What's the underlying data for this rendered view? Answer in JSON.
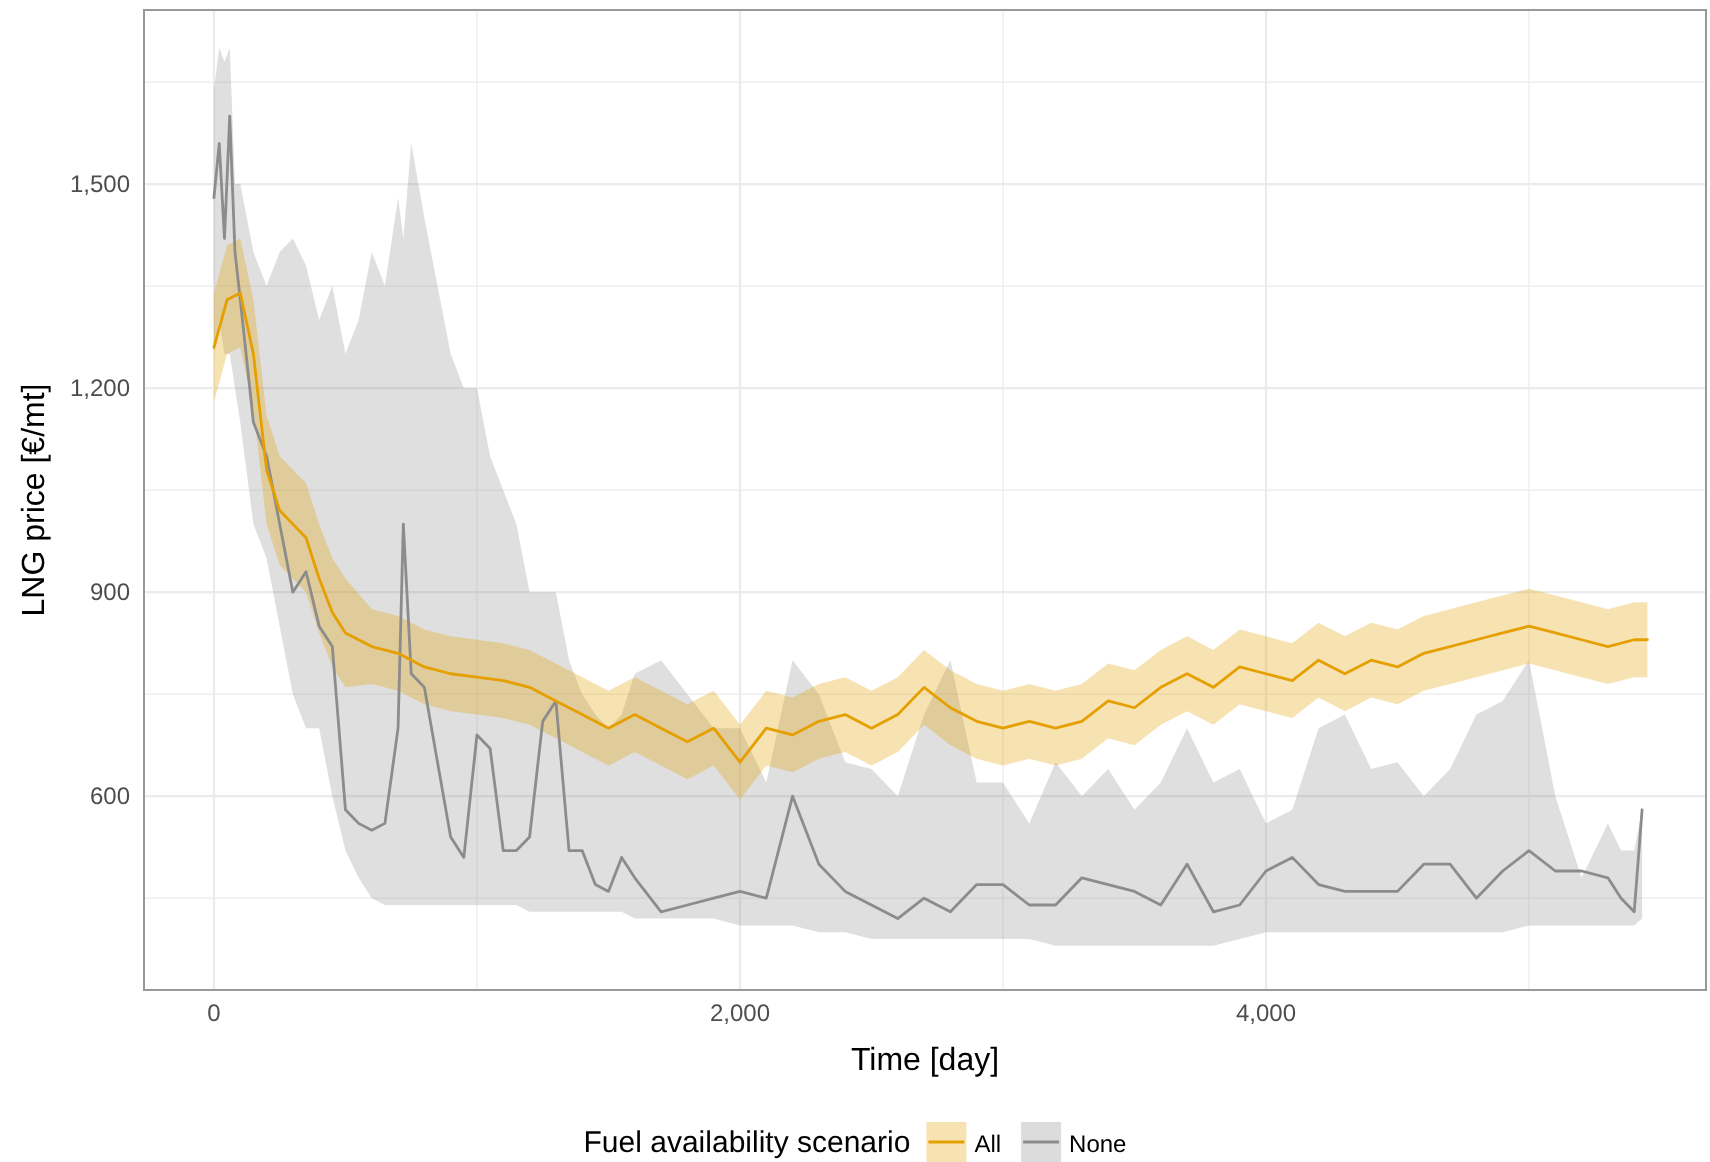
{
  "chart_data": {
    "type": "line",
    "xlabel": "Time [day]",
    "ylabel": "LNG price [€/mt]",
    "legend_title": "Fuel availability scenario",
    "legend": "bottom",
    "grid": true,
    "xlim": [
      -266,
      5673
    ],
    "ylim": [
      315,
      1756
    ],
    "xticks": [
      0,
      {
        "value": 1000,
        "label": null
      },
      {
        "value": 2000,
        "label": "2,000"
      },
      {
        "value": 3000,
        "label": null
      },
      {
        "value": 4000,
        "label": "4,000"
      },
      {
        "value": 5000,
        "label": null
      }
    ],
    "yticks": [
      {
        "value": 450,
        "label": null
      },
      {
        "value": 600,
        "label": "600"
      },
      {
        "value": 750,
        "label": null
      },
      {
        "value": 900,
        "label": "900"
      },
      {
        "value": 1050,
        "label": null
      },
      {
        "value": 1200,
        "label": "1,200"
      },
      {
        "value": 1350,
        "label": null
      },
      {
        "value": 1500,
        "label": "1,500"
      },
      {
        "value": 1650,
        "label": null
      }
    ],
    "series": [
      {
        "name": "All",
        "color": "#e69f00",
        "x": [
          0,
          50,
          100,
          150,
          200,
          250,
          300,
          350,
          400,
          450,
          500,
          600,
          700,
          800,
          900,
          1000,
          1100,
          1200,
          1300,
          1400,
          1500,
          1600,
          1700,
          1800,
          1900,
          2000,
          2100,
          2200,
          2300,
          2400,
          2500,
          2600,
          2700,
          2800,
          2900,
          3000,
          3100,
          3200,
          3300,
          3400,
          3500,
          3600,
          3700,
          3800,
          3900,
          4000,
          4100,
          4200,
          4300,
          4400,
          4500,
          4600,
          4700,
          4800,
          4900,
          5000,
          5100,
          5200,
          5300,
          5400,
          5450
        ],
        "values": [
          1260,
          1330,
          1340,
          1250,
          1080,
          1020,
          1000,
          980,
          920,
          870,
          840,
          820,
          810,
          790,
          780,
          775,
          770,
          760,
          740,
          720,
          700,
          720,
          700,
          680,
          700,
          650,
          700,
          690,
          710,
          720,
          700,
          720,
          760,
          730,
          710,
          700,
          710,
          700,
          710,
          740,
          730,
          760,
          780,
          760,
          790,
          780,
          770,
          800,
          780,
          800,
          790,
          810,
          820,
          830,
          840,
          850,
          840,
          830,
          820,
          830,
          830
        ],
        "lower": [
          1180,
          1250,
          1260,
          1170,
          1000,
          940,
          920,
          900,
          840,
          790,
          760,
          765,
          755,
          735,
          725,
          720,
          715,
          705,
          685,
          665,
          645,
          665,
          645,
          625,
          645,
          595,
          645,
          635,
          655,
          665,
          645,
          665,
          705,
          675,
          655,
          645,
          655,
          645,
          655,
          685,
          675,
          705,
          725,
          705,
          735,
          725,
          715,
          745,
          725,
          745,
          735,
          755,
          765,
          775,
          785,
          795,
          785,
          775,
          765,
          775,
          775
        ],
        "upper": [
          1340,
          1410,
          1420,
          1330,
          1160,
          1100,
          1080,
          1060,
          1000,
          950,
          920,
          875,
          865,
          845,
          835,
          830,
          825,
          815,
          795,
          775,
          755,
          775,
          755,
          735,
          755,
          705,
          755,
          745,
          765,
          775,
          755,
          775,
          815,
          785,
          765,
          755,
          765,
          755,
          765,
          795,
          785,
          815,
          835,
          815,
          845,
          835,
          825,
          855,
          835,
          855,
          845,
          865,
          875,
          885,
          895,
          905,
          895,
          885,
          875,
          885,
          885
        ]
      },
      {
        "name": "None",
        "color": "#8c8c8c",
        "x": [
          0,
          20,
          40,
          60,
          80,
          100,
          150,
          200,
          250,
          300,
          350,
          400,
          450,
          500,
          550,
          600,
          650,
          700,
          720,
          750,
          800,
          850,
          900,
          950,
          1000,
          1050,
          1100,
          1150,
          1200,
          1250,
          1300,
          1350,
          1400,
          1450,
          1500,
          1550,
          1600,
          1700,
          1800,
          1900,
          2000,
          2100,
          2200,
          2300,
          2400,
          2500,
          2600,
          2700,
          2800,
          2900,
          3000,
          3100,
          3200,
          3300,
          3400,
          3500,
          3600,
          3700,
          3800,
          3900,
          4000,
          4100,
          4200,
          4300,
          4400,
          4500,
          4600,
          4700,
          4800,
          4900,
          5000,
          5100,
          5200,
          5300,
          5350,
          5400,
          5430
        ],
        "values": [
          1480,
          1560,
          1420,
          1600,
          1400,
          1330,
          1150,
          1100,
          1000,
          900,
          930,
          850,
          820,
          580,
          560,
          550,
          560,
          700,
          1000,
          780,
          760,
          650,
          540,
          510,
          690,
          670,
          520,
          520,
          540,
          710,
          740,
          520,
          520,
          470,
          460,
          510,
          480,
          430,
          440,
          450,
          460,
          450,
          600,
          500,
          460,
          440,
          420,
          450,
          430,
          470,
          470,
          440,
          440,
          480,
          470,
          460,
          440,
          500,
          430,
          440,
          490,
          510,
          470,
          460,
          460,
          460,
          500,
          500,
          450,
          490,
          520,
          490,
          490,
          480,
          450,
          430,
          580
        ],
        "lower": [
          1250,
          1300,
          1250,
          1250,
          1200,
          1150,
          1000,
          950,
          850,
          750,
          700,
          700,
          600,
          520,
          480,
          450,
          440,
          440,
          440,
          440,
          440,
          440,
          440,
          440,
          440,
          440,
          440,
          440,
          430,
          430,
          430,
          430,
          430,
          430,
          430,
          430,
          420,
          420,
          420,
          420,
          410,
          410,
          410,
          400,
          400,
          390,
          390,
          390,
          390,
          390,
          390,
          390,
          380,
          380,
          380,
          380,
          380,
          380,
          380,
          390,
          400,
          400,
          400,
          400,
          400,
          400,
          400,
          400,
          400,
          400,
          410,
          410,
          410,
          410,
          410,
          410,
          420
        ],
        "upper": [
          1640,
          1700,
          1680,
          1700,
          1500,
          1500,
          1400,
          1350,
          1400,
          1420,
          1380,
          1300,
          1350,
          1250,
          1300,
          1400,
          1350,
          1480,
          1420,
          1560,
          1450,
          1350,
          1250,
          1200,
          1200,
          1100,
          1050,
          1000,
          900,
          900,
          900,
          800,
          750,
          720,
          700,
          720,
          780,
          800,
          750,
          700,
          700,
          620,
          800,
          750,
          650,
          640,
          600,
          720,
          800,
          620,
          620,
          560,
          650,
          600,
          640,
          580,
          620,
          700,
          620,
          640,
          560,
          580,
          700,
          720,
          640,
          650,
          600,
          640,
          720,
          740,
          800,
          600,
          480,
          560,
          520,
          520,
          580
        ]
      }
    ]
  }
}
